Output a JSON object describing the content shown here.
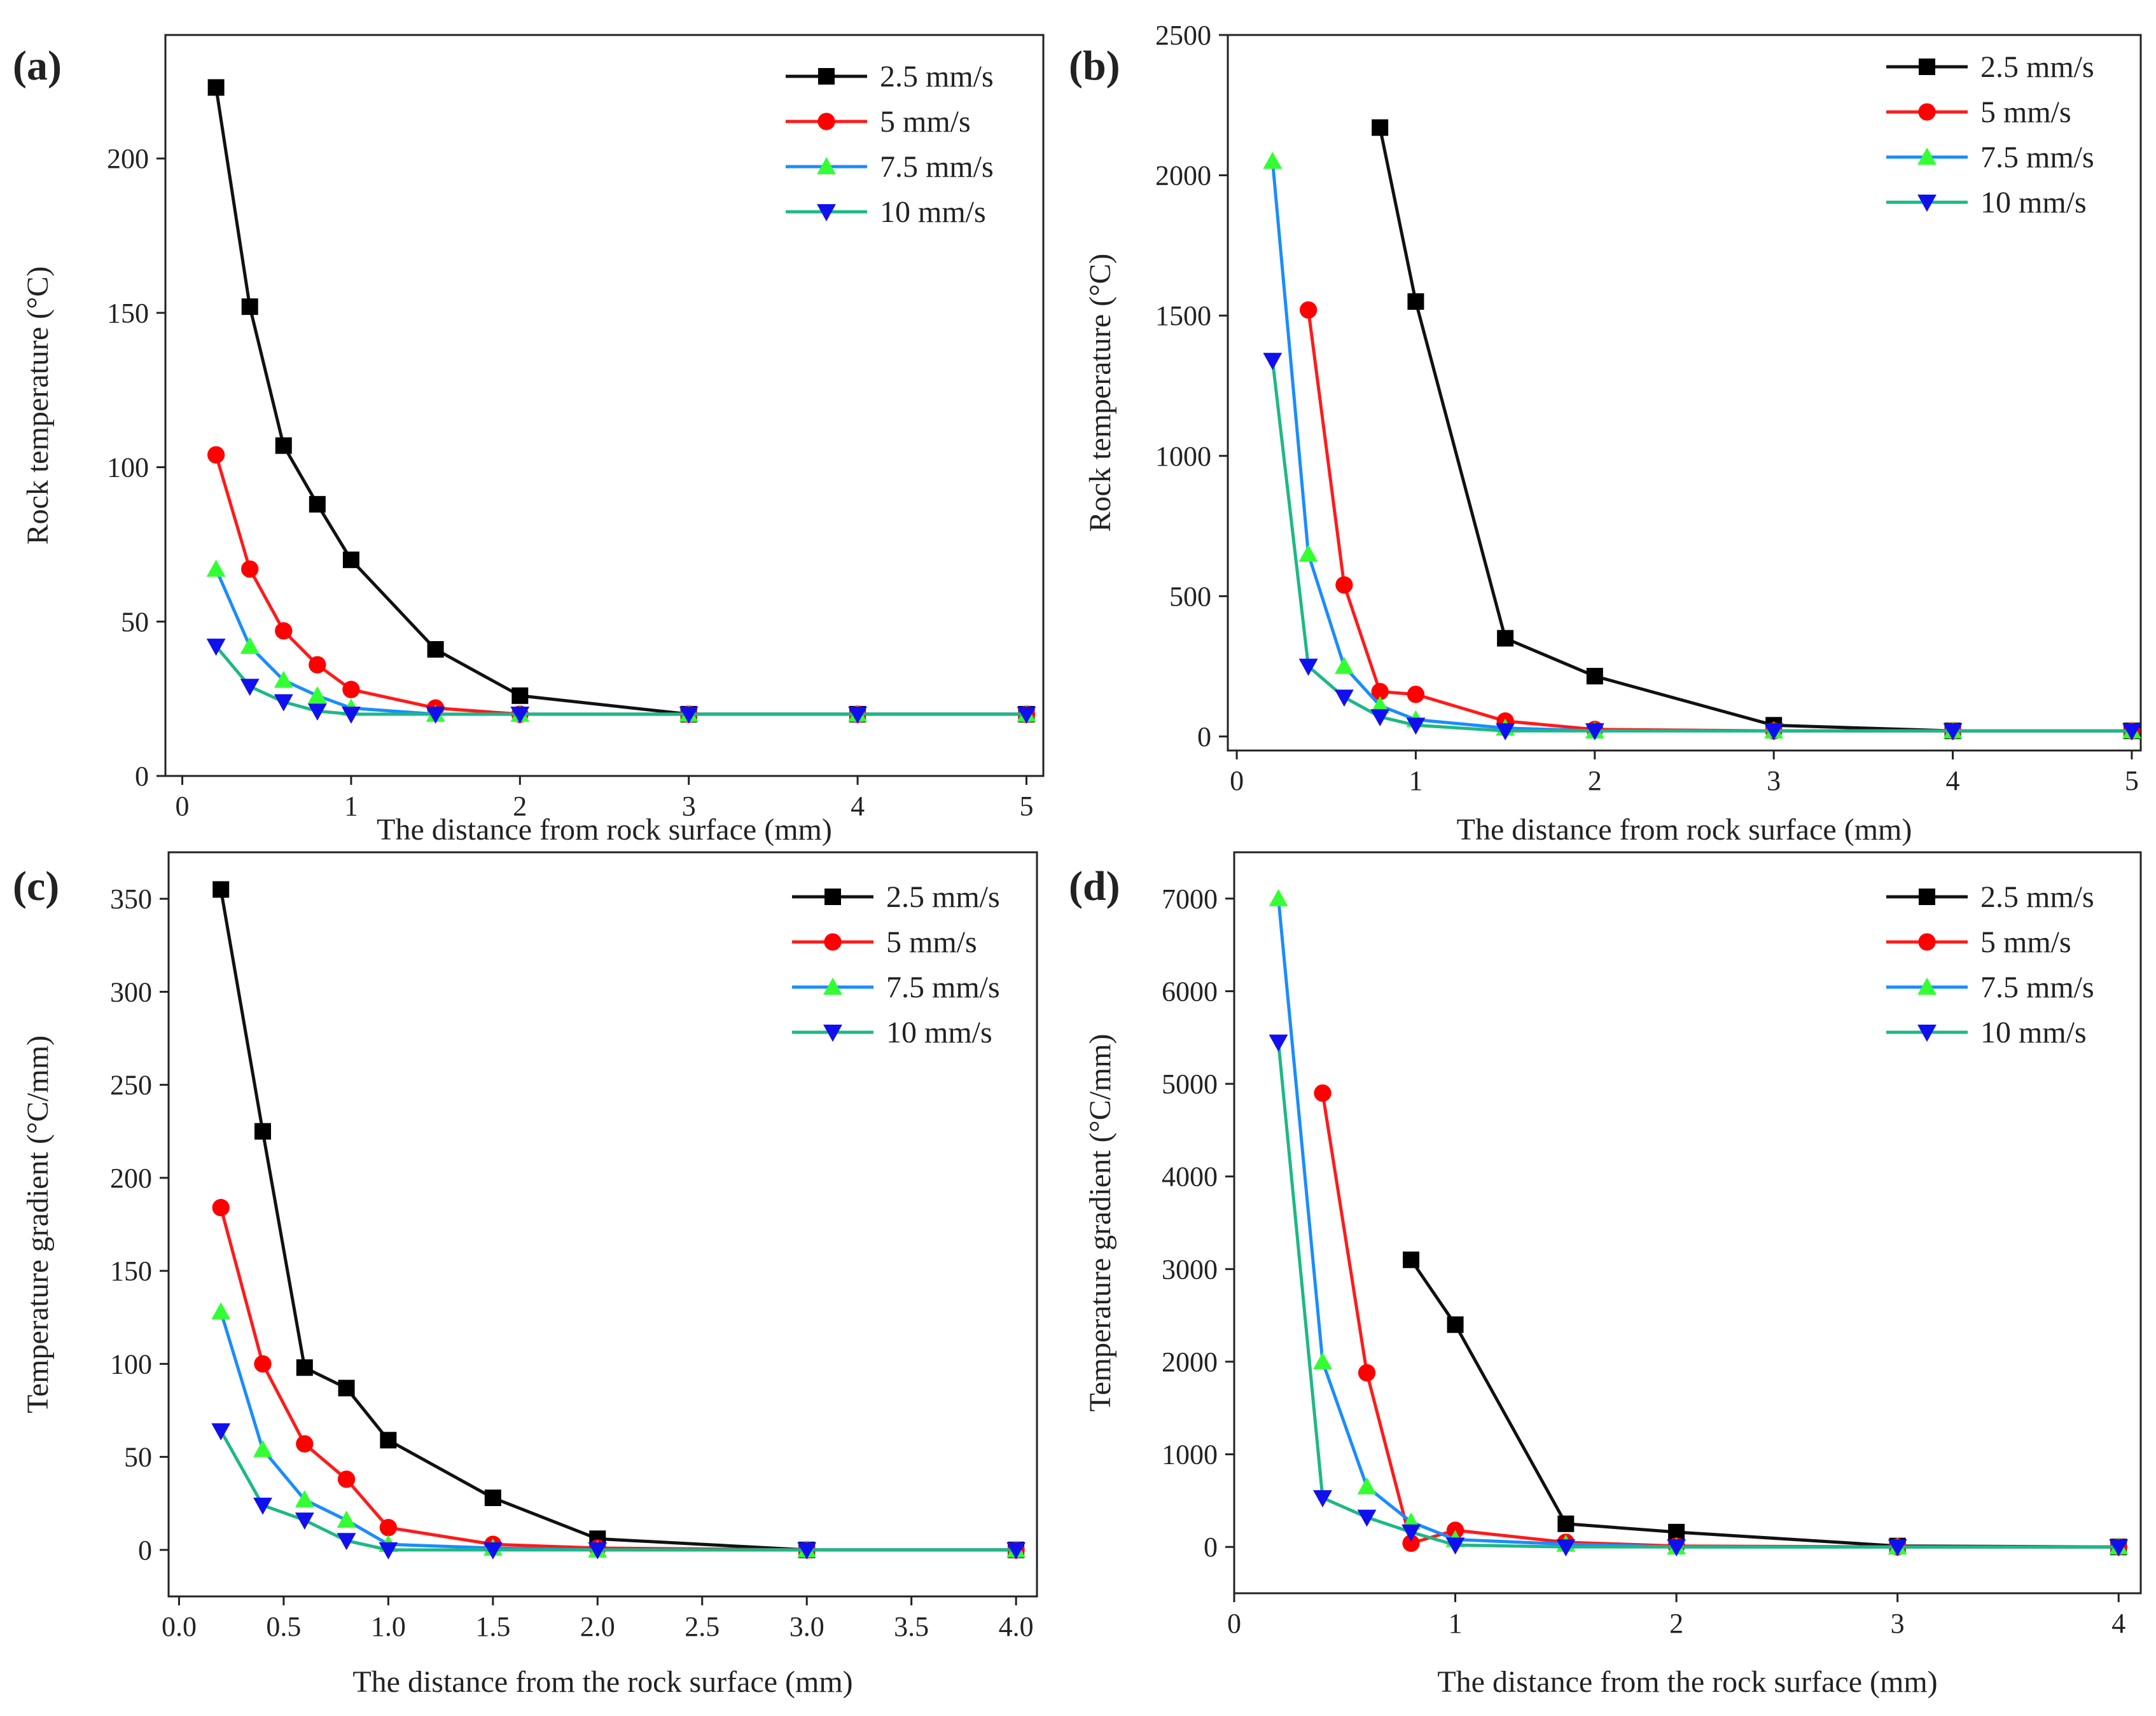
{
  "figure": {
    "series_colors": {
      "2.5 mm/s": "#111111",
      "5 mm/s": "#ff1a1a",
      "7.5 mm/s": "#1a8cff",
      "10 mm/s": "#1db885"
    },
    "marker_colors": {
      "2.5 mm/s": "#000000",
      "5 mm/s": "#ff0000",
      "7.5 mm/s": "#33ff33",
      "10 mm/s": "#1010ee"
    },
    "marker_shapes": {
      "2.5 mm/s": "square",
      "5 mm/s": "circle",
      "7.5 mm/s": "triangle-up",
      "10 mm/s": "triangle-down"
    }
  },
  "chart_data": [
    {
      "panel": "(a)",
      "type": "line",
      "xlabel": "The distance from rock surface (mm)",
      "ylabel": "Rock temperature (°C)",
      "xlim": [
        -0.1,
        5.1
      ],
      "ylim": [
        0,
        240
      ],
      "xticks": [
        0,
        1,
        2,
        3,
        4,
        5
      ],
      "xtick_labels": [
        "0",
        "1",
        "2",
        "3",
        "4",
        "5"
      ],
      "yticks": [
        0,
        50,
        100,
        150,
        200
      ],
      "ytick_labels": [
        "0",
        "50",
        "100",
        "150",
        "200"
      ],
      "legend": "top-right",
      "series": [
        {
          "name": "2.5 mm/s",
          "x": [
            0.2,
            0.4,
            0.6,
            0.8,
            1,
            1.5,
            2,
            3,
            4,
            5
          ],
          "y": [
            223,
            152,
            107,
            88,
            70,
            41,
            26,
            20,
            20,
            20
          ]
        },
        {
          "name": "5 mm/s",
          "x": [
            0.2,
            0.4,
            0.6,
            0.8,
            1,
            1.5,
            2,
            3,
            4,
            5
          ],
          "y": [
            104,
            67,
            47,
            36,
            28,
            22,
            20,
            20,
            20,
            20
          ]
        },
        {
          "name": "7.5 mm/s",
          "x": [
            0.2,
            0.4,
            0.6,
            0.8,
            1,
            1.5,
            2,
            3,
            4,
            5
          ],
          "y": [
            67,
            42,
            31,
            26,
            22,
            20,
            20,
            20,
            20,
            20
          ]
        },
        {
          "name": "10 mm/s",
          "x": [
            0.2,
            0.4,
            0.6,
            0.8,
            1,
            1.5,
            2,
            3,
            4,
            5
          ],
          "y": [
            42,
            29,
            24,
            21,
            20,
            20,
            20,
            20,
            20,
            20
          ]
        }
      ]
    },
    {
      "panel": "(b)",
      "type": "line",
      "xlabel": "The distance from rock surface (mm)",
      "ylabel": "Rock temperature (°C)",
      "xlim": [
        -0.05,
        5.05
      ],
      "ylim": [
        -50,
        2500
      ],
      "xticks": [
        0,
        1,
        2,
        3,
        4,
        5
      ],
      "xtick_labels": [
        "0",
        "1",
        "2",
        "3",
        "4",
        "5"
      ],
      "yticks": [
        0,
        500,
        1000,
        1500,
        2000,
        2500
      ],
      "ytick_labels": [
        "0",
        "500",
        "1000",
        "1500",
        "2000",
        "2500"
      ],
      "legend": "top-right",
      "series": [
        {
          "name": "2.5 mm/s",
          "x": [
            0.8,
            1,
            1.5,
            2,
            3,
            4,
            5
          ],
          "y": [
            2170,
            1550,
            350,
            215,
            40,
            20,
            20
          ]
        },
        {
          "name": "5 mm/s",
          "x": [
            0.4,
            0.6,
            0.8,
            1,
            1.5,
            2,
            3,
            4,
            5
          ],
          "y": [
            1520,
            540,
            160,
            150,
            55,
            25,
            20,
            20,
            20
          ]
        },
        {
          "name": "7.5 mm/s",
          "x": [
            0.2,
            0.4,
            0.6,
            0.8,
            1,
            1.5,
            2,
            3,
            4,
            5
          ],
          "y": [
            2050,
            650,
            250,
            110,
            60,
            30,
            20,
            20,
            20,
            20
          ]
        },
        {
          "name": "10 mm/s",
          "x": [
            0.2,
            0.4,
            0.6,
            0.8,
            1,
            1.5,
            2,
            3,
            4,
            5
          ],
          "y": [
            1340,
            250,
            140,
            70,
            40,
            20,
            20,
            20,
            20,
            20
          ]
        }
      ]
    },
    {
      "panel": "(c)",
      "type": "line",
      "xlabel": "The distance from the rock surface (mm)",
      "ylabel": "Temperature gradient (°C/mm)",
      "xlim": [
        -0.05,
        4.1
      ],
      "ylim": [
        -25,
        375
      ],
      "xticks": [
        0,
        0.5,
        1,
        1.5,
        2,
        2.5,
        3,
        3.5,
        4
      ],
      "xtick_labels": [
        "0.0",
        "0.5",
        "1.0",
        "1.5",
        "2.0",
        "2.5",
        "3.0",
        "3.5",
        "4.0"
      ],
      "yticks": [
        0,
        50,
        100,
        150,
        200,
        250,
        300,
        350
      ],
      "ytick_labels": [
        "0",
        "50",
        "100",
        "150",
        "200",
        "250",
        "300",
        "350"
      ],
      "legend": "top-right",
      "series": [
        {
          "name": "2.5 mm/s",
          "x": [
            0.2,
            0.4,
            0.6,
            0.8,
            1,
            1.5,
            2,
            3,
            4
          ],
          "y": [
            355,
            225,
            98,
            87,
            59,
            28,
            6,
            0,
            0
          ]
        },
        {
          "name": "5 mm/s",
          "x": [
            0.2,
            0.4,
            0.6,
            0.8,
            1,
            1.5,
            2,
            3,
            4
          ],
          "y": [
            184,
            100,
            57,
            38,
            12,
            3,
            1,
            0,
            0
          ]
        },
        {
          "name": "7.5 mm/s",
          "x": [
            0.2,
            0.4,
            0.6,
            0.8,
            1,
            1.5,
            2,
            3,
            4
          ],
          "y": [
            128,
            54,
            27,
            16,
            3,
            1,
            0,
            0,
            0
          ]
        },
        {
          "name": "10 mm/s",
          "x": [
            0.2,
            0.4,
            0.6,
            0.8,
            1,
            1.5,
            2,
            3,
            4
          ],
          "y": [
            64,
            24,
            16,
            5,
            0,
            0,
            0,
            0,
            0
          ]
        }
      ]
    },
    {
      "panel": "(d)",
      "type": "line",
      "xlabel": "The distance from the rock surface (mm)",
      "ylabel": "Temperature gradient (°C/mm)",
      "xlim": [
        0,
        4.1
      ],
      "ylim": [
        -500,
        7500
      ],
      "xticks": [
        0,
        1,
        2,
        3,
        4
      ],
      "xtick_labels": [
        "0",
        "1",
        "2",
        "3",
        "4"
      ],
      "yticks": [
        0,
        1000,
        2000,
        3000,
        4000,
        5000,
        6000,
        7000
      ],
      "ytick_labels": [
        "0",
        "1000",
        "2000",
        "3000",
        "4000",
        "5000",
        "6000",
        "7000"
      ],
      "legend": "top-right",
      "series": [
        {
          "name": "2.5 mm/s",
          "x": [
            0.8,
            1,
            1.5,
            2,
            3,
            4
          ],
          "y": [
            3100,
            2400,
            250,
            160,
            10,
            0
          ]
        },
        {
          "name": "5 mm/s",
          "x": [
            0.4,
            0.6,
            0.8,
            1,
            1.5,
            2,
            3,
            4
          ],
          "y": [
            4900,
            1880,
            40,
            180,
            50,
            10,
            0,
            0
          ]
        },
        {
          "name": "7.5 mm/s",
          "x": [
            0.2,
            0.4,
            0.6,
            0.8,
            1,
            1.5,
            2,
            3,
            4
          ],
          "y": [
            7000,
            2000,
            650,
            270,
            80,
            30,
            0,
            0,
            0
          ]
        },
        {
          "name": "10 mm/s",
          "x": [
            0.2,
            0.4,
            0.6,
            0.8,
            1,
            1.5,
            2,
            3,
            4
          ],
          "y": [
            5450,
            530,
            320,
            160,
            20,
            0,
            0,
            0,
            0
          ]
        }
      ]
    }
  ]
}
